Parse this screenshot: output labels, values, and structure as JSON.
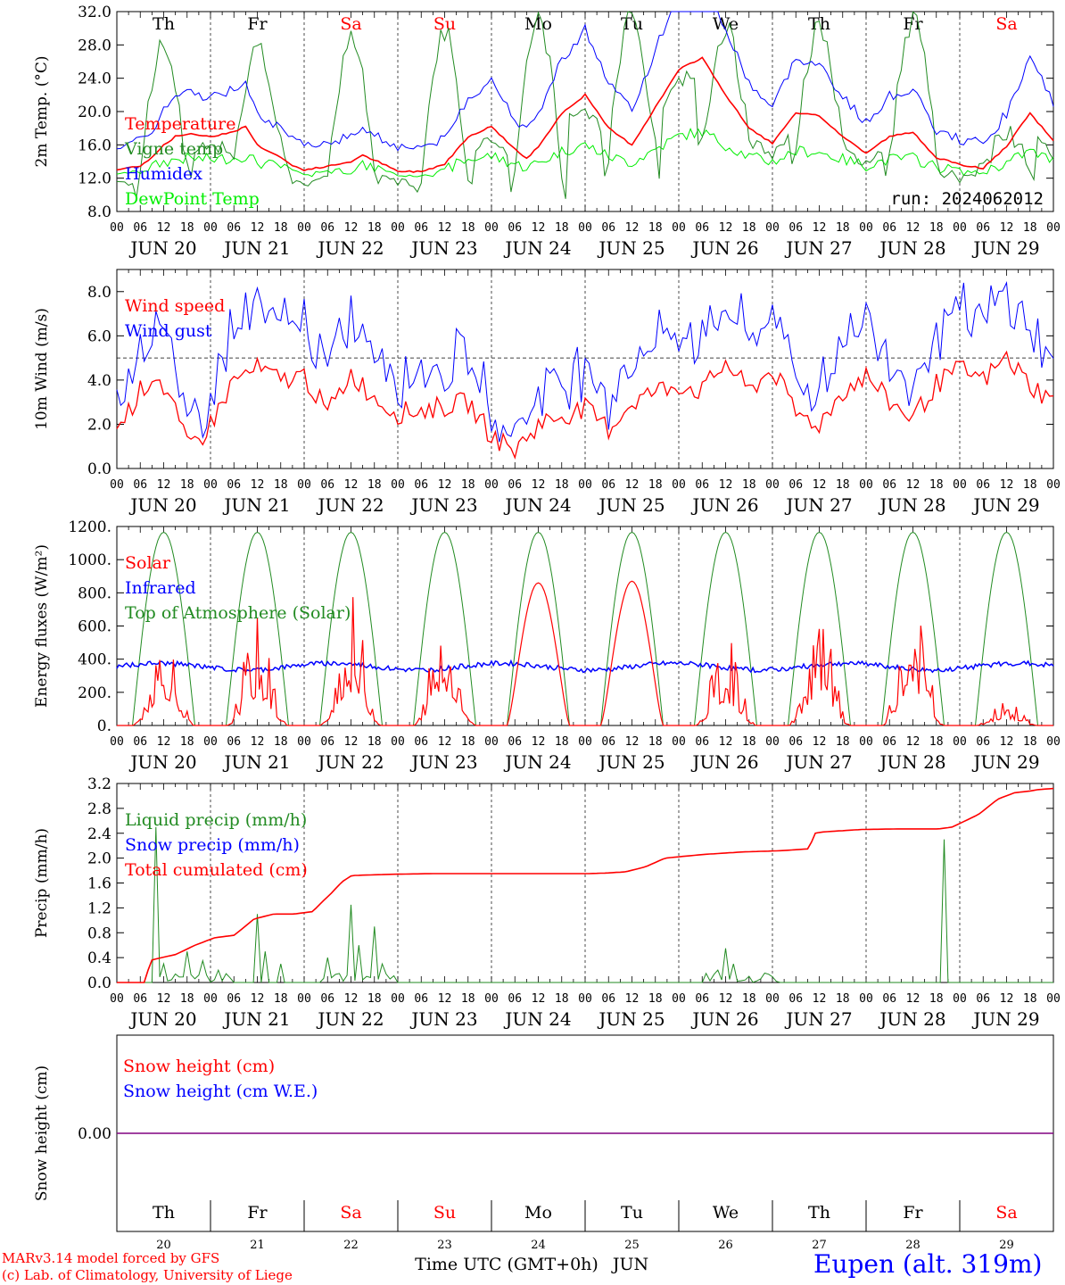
{
  "chart_data": [
    {
      "type": "line",
      "ylabel": "2m Temp. (°C)",
      "ylim": [
        8.0,
        32.0
      ],
      "yticks": [
        "8.0",
        "12.0",
        "16.0",
        "20.0",
        "24.0",
        "28.0",
        "32.0"
      ],
      "yticks_values": [
        8,
        12,
        16,
        20,
        24,
        28,
        32
      ],
      "run_label": "run: 2024062012",
      "series": [
        {
          "name": "Temperature",
          "color": "#ff0000",
          "x_hours": [
            0,
            6,
            9,
            12,
            15,
            18,
            21,
            24,
            30,
            33,
            36,
            39,
            42,
            45,
            48,
            54,
            60,
            63,
            66,
            69,
            72,
            78,
            84,
            90,
            96,
            102,
            105,
            108,
            114,
            120,
            126,
            132,
            138,
            144,
            150,
            156,
            162,
            168,
            174,
            180,
            186,
            192,
            198,
            204,
            210,
            216,
            222,
            228,
            234,
            240
          ],
          "values": [
            13.0,
            13.5,
            14.5,
            16.0,
            17.0,
            17.3,
            17.2,
            17.0,
            17.6,
            18.2,
            16.0,
            15.2,
            14.5,
            13.5,
            13.0,
            13.4,
            14.0,
            14.7,
            14.2,
            13.5,
            12.8,
            12.8,
            13.7,
            17.0,
            18.2,
            15.5,
            14.3,
            15.8,
            19.8,
            22.0,
            18.0,
            16.0,
            20.5,
            25.0,
            26.5,
            22.0,
            18.0,
            16.2,
            19.8,
            19.5,
            17.0,
            15.0,
            17.0,
            17.5,
            14.5,
            13.6,
            13.2,
            15.8,
            19.8,
            16.5
          ],
          "extra": [
            15.5,
            13.2,
            14.3,
            14.2,
            12.0
          ]
        },
        {
          "name": "Vigne temp",
          "color": "#228b22",
          "values_desc": "daily oscillating vine temperature"
        },
        {
          "name": "Humidex",
          "color": "#0000ff"
        },
        {
          "name": "DewPoint Temp",
          "color": "#00ee00"
        }
      ]
    },
    {
      "type": "line",
      "ylabel": "10m Wind (m/s)",
      "ylim": [
        0.0,
        9.0
      ],
      "yticks": [
        "0.0",
        "2.0",
        "4.0",
        "6.0",
        "8.0"
      ],
      "yticks_values": [
        0,
        2,
        4,
        6,
        8
      ],
      "ref_line": 5.0,
      "series": [
        {
          "name": "Wind speed",
          "color": "#ff0000"
        },
        {
          "name": "Wind gust",
          "color": "#0000ff"
        }
      ]
    },
    {
      "type": "line",
      "ylabel": "Energy fluxes (W/m²)",
      "ylim": [
        0,
        1200
      ],
      "yticks": [
        "0.",
        "200.",
        "400.",
        "600.",
        "800.",
        "1000.",
        "1200."
      ],
      "yticks_values": [
        0,
        200,
        400,
        600,
        800,
        1000,
        1200
      ],
      "series": [
        {
          "name": "Solar",
          "color": "#ff0000",
          "daily_peaks": [
            650,
            660,
            800,
            800,
            860,
            870,
            550,
            720,
            830,
            160
          ]
        },
        {
          "name": "Infrared",
          "color": "#0000ff"
        },
        {
          "name": "Top of Atmosphere (Solar)",
          "color": "#228b22",
          "daily_peak": 1165
        }
      ]
    },
    {
      "type": "line",
      "ylabel": "Precip (mm/h)",
      "ylim": [
        0.0,
        3.2
      ],
      "yticks": [
        "0.0",
        "0.4",
        "0.8",
        "1.2",
        "1.6",
        "2.0",
        "2.4",
        "2.8",
        "3.2"
      ],
      "yticks_values": [
        0,
        0.4,
        0.8,
        1.2,
        1.6,
        2.0,
        2.4,
        2.8,
        3.2
      ],
      "series": [
        {
          "name": "Liquid precip (mm/h)",
          "color": "#228b22"
        },
        {
          "name": "Snow precip (mm/h)",
          "color": "#0000ff"
        },
        {
          "name": "Total cumulated (cm)",
          "color": "#ff0000",
          "x_hours": [
            0,
            9,
            10,
            12,
            18,
            24,
            30,
            36,
            42,
            48,
            54,
            60,
            63,
            66,
            69,
            72,
            84,
            96,
            120,
            144,
            150,
            156,
            162,
            168,
            180,
            192,
            204,
            212,
            214,
            216,
            228,
            240,
            246,
            250,
            252,
            256,
            264,
            270,
            275,
            280,
            282,
            287
          ],
          "values": [
            0,
            0,
            0.35,
            0.38,
            0.45,
            0.6,
            0.72,
            0.76,
            1.02,
            1.1,
            1.1,
            1.14,
            1.3,
            1.45,
            1.62,
            1.72,
            1.74,
            1.75,
            1.75,
            1.75,
            1.76,
            1.78,
            1.86,
            2.0,
            2.06,
            2.1,
            2.12,
            2.15,
            2.4,
            2.42,
            2.46,
            2.47,
            2.47,
            2.47,
            2.47,
            2.5,
            2.7,
            2.95,
            3.05,
            3.08,
            3.1,
            3.12
          ]
        }
      ]
    },
    {
      "type": "line",
      "ylabel": "Snow height (cm)",
      "yticks": [
        "0.00"
      ],
      "yticks_values": [
        0
      ],
      "series": [
        {
          "name": "Snow height (cm)",
          "color": "#ff0000",
          "values": [
            0
          ]
        },
        {
          "name": "Snow height (cm W.E.)",
          "color": "#0000ff",
          "values": [
            0
          ]
        }
      ]
    }
  ],
  "axis": {
    "hour_ticks": [
      "00",
      "06",
      "12",
      "18"
    ],
    "date_labels": [
      "JUN 20",
      "JUN 21",
      "JUN 22",
      "JUN 23",
      "JUN 24",
      "JUN 25",
      "JUN 26",
      "JUN 27",
      "JUN 28",
      "JUN 29"
    ],
    "weekdays": [
      "Th",
      "Fr",
      "Sa",
      "Su",
      "Mo",
      "Tu",
      "We",
      "Th",
      "Fr",
      "Sa"
    ],
    "weekend_flags": [
      false,
      false,
      true,
      true,
      false,
      false,
      false,
      false,
      false,
      true
    ],
    "bottom_days": [
      "20",
      "21",
      "22",
      "23",
      "24",
      "25",
      "26",
      "27",
      "28",
      "29"
    ],
    "xlabel": "Time UTC (GMT+0h)",
    "month": "JUN"
  },
  "footer": {
    "model_line": "MARv3.14 model forced by GFS",
    "copyright_line": "(c) Lab. of Climatology, University of Liege",
    "station": "Eupen (alt. 319m)"
  },
  "colors": {
    "red": "#ff0000",
    "green": "#228b22",
    "blue": "#0000ff",
    "lightgreen": "#00ee00",
    "purple": "#800080"
  }
}
